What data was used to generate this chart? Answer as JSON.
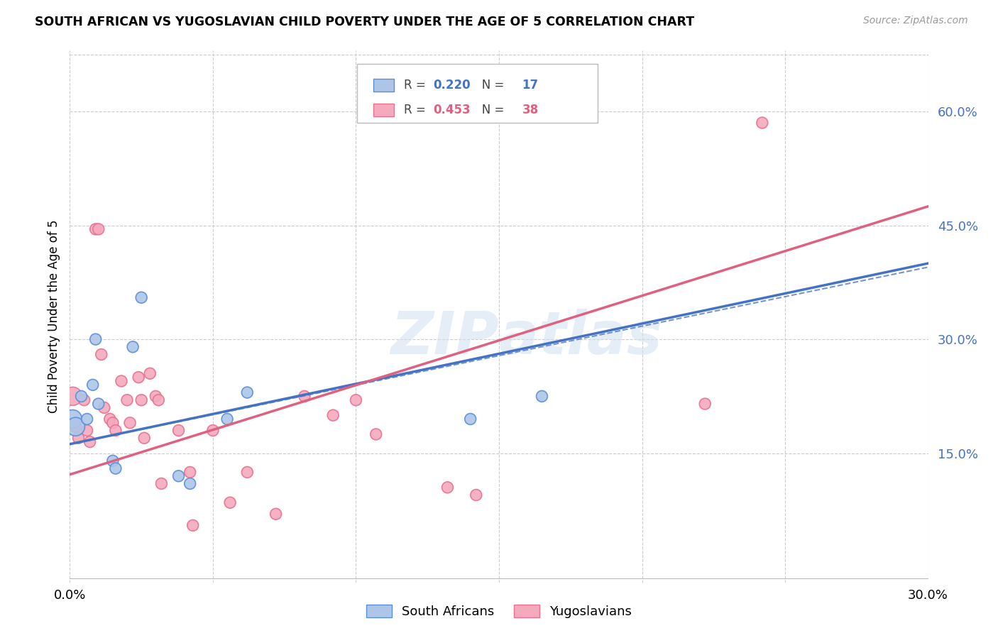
{
  "title": "SOUTH AFRICAN VS YUGOSLAVIAN CHILD POVERTY UNDER THE AGE OF 5 CORRELATION CHART",
  "source": "Source: ZipAtlas.com",
  "ylabel": "Child Poverty Under the Age of 5",
  "xlim": [
    0.0,
    0.3
  ],
  "ylim": [
    -0.02,
    0.68
  ],
  "yticks": [
    0.15,
    0.3,
    0.45,
    0.6
  ],
  "xticks": [
    0.0,
    0.05,
    0.1,
    0.15,
    0.2,
    0.25,
    0.3
  ],
  "xtick_labels": [
    "0.0%",
    "",
    "",
    "",
    "",
    "",
    "30.0%"
  ],
  "ytick_labels": [
    "15.0%",
    "30.0%",
    "45.0%",
    "60.0%"
  ],
  "watermark": "ZIPAtlas",
  "sa_color": "#adc6e8",
  "yu_color": "#f4aabc",
  "sa_edge_color": "#5b8dd9",
  "yu_edge_color": "#e87090",
  "sa_line_color": "#4472c4",
  "yu_line_color": "#e06080",
  "sa_label": "South Africans",
  "yu_label": "Yugoslavians",
  "sa_R": "0.220",
  "sa_N": "17",
  "yu_R": "0.453",
  "yu_N": "38",
  "south_africans_x": [
    0.001,
    0.002,
    0.004,
    0.006,
    0.008,
    0.009,
    0.01,
    0.015,
    0.016,
    0.022,
    0.025,
    0.038,
    0.042,
    0.055,
    0.062,
    0.14,
    0.165
  ],
  "south_africans_y": [
    0.195,
    0.185,
    0.225,
    0.195,
    0.24,
    0.3,
    0.215,
    0.14,
    0.13,
    0.29,
    0.355,
    0.12,
    0.11,
    0.195,
    0.23,
    0.195,
    0.225
  ],
  "yugoslavians_x": [
    0.001,
    0.002,
    0.003,
    0.005,
    0.006,
    0.007,
    0.009,
    0.01,
    0.011,
    0.012,
    0.014,
    0.015,
    0.016,
    0.018,
    0.02,
    0.021,
    0.024,
    0.025,
    0.026,
    0.028,
    0.03,
    0.031,
    0.032,
    0.038,
    0.042,
    0.043,
    0.05,
    0.056,
    0.062,
    0.072,
    0.082,
    0.092,
    0.1,
    0.107,
    0.132,
    0.142,
    0.222,
    0.242
  ],
  "yugoslavians_y": [
    0.225,
    0.185,
    0.17,
    0.22,
    0.18,
    0.165,
    0.445,
    0.445,
    0.28,
    0.21,
    0.195,
    0.19,
    0.18,
    0.245,
    0.22,
    0.19,
    0.25,
    0.22,
    0.17,
    0.255,
    0.225,
    0.22,
    0.11,
    0.18,
    0.125,
    0.055,
    0.18,
    0.085,
    0.125,
    0.07,
    0.225,
    0.2,
    0.22,
    0.175,
    0.105,
    0.095,
    0.215,
    0.585
  ],
  "yu_large_idx": 0,
  "yu_large_size": 350,
  "sa_large_idx": [
    0,
    1
  ],
  "sa_large_size": 350,
  "background_color": "#ffffff",
  "grid_color": "#cccccc",
  "legend_R_color": "#4472c4",
  "legend_text_color": "#333333"
}
